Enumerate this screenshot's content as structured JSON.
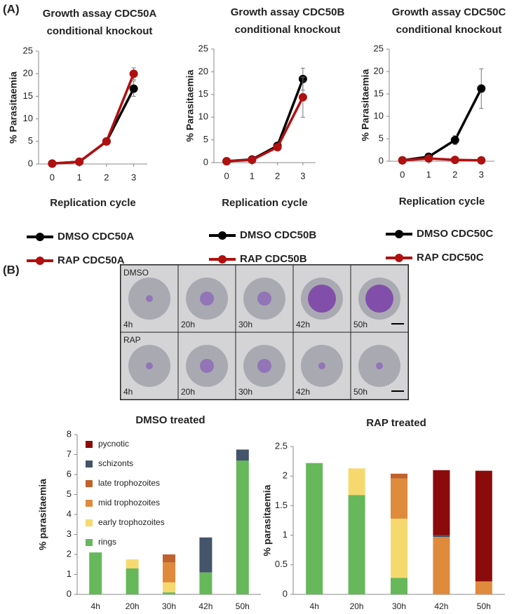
{
  "panels": [
    "(A)",
    "(B)"
  ],
  "micrograph": {
    "rows": [
      "DMSO",
      "RAP"
    ],
    "times": [
      "4h",
      "20h",
      "30h",
      "42h",
      "50h"
    ]
  },
  "chart_data": [
    {
      "type": "line",
      "title": [
        "Growth assay CDC50A",
        "conditional knockout"
      ],
      "x_label": "Replication cycle",
      "y_label": "% Parasitaemia",
      "x": [
        0,
        1,
        2,
        3
      ],
      "xlim": [
        -0.5,
        3.5
      ],
      "xticks": [
        0,
        1,
        2,
        3
      ],
      "ylim": [
        0,
        25
      ],
      "yticks": [
        0,
        5,
        10,
        15,
        20,
        25
      ],
      "series": [
        {
          "name": "DMSO CDC50A",
          "color": "#000000",
          "values": [
            0.1,
            0.5,
            5,
            16.7
          ],
          "errors": [
            0.05,
            0.1,
            0.3,
            1.7
          ]
        },
        {
          "name": "RAP CDC50A",
          "color": "#b01010",
          "values": [
            0.1,
            0.5,
            5,
            20
          ],
          "errors": [
            0.05,
            0.1,
            0.3,
            1.3
          ]
        }
      ]
    },
    {
      "type": "line",
      "title": [
        "Growth assay CDC50B",
        "conditional knockout"
      ],
      "x_label": "Replication cycle",
      "y_label": "% Parasitaemia",
      "x": [
        0,
        1,
        2,
        3
      ],
      "xlim": [
        -0.5,
        3.5
      ],
      "xticks": [
        0,
        1,
        2,
        3
      ],
      "ylim": [
        0,
        25
      ],
      "yticks": [
        0,
        5,
        10,
        15,
        20,
        25
      ],
      "series": [
        {
          "name": "DMSO CDC50B",
          "color": "#000000",
          "values": [
            0.3,
            0.7,
            3.7,
            18.4
          ],
          "errors": [
            0.05,
            0.1,
            0.3,
            2.4
          ]
        },
        {
          "name": "RAP CDC50B",
          "color": "#b01010",
          "values": [
            0.3,
            0.6,
            3.4,
            14.4
          ],
          "errors": [
            0.05,
            0.1,
            0.3,
            4.4
          ]
        }
      ]
    },
    {
      "type": "line",
      "title": [
        "Growth assay CDC50C",
        "conditional knockout"
      ],
      "x_label": "Replication cycle",
      "y_label": "% Parasitaemia",
      "x": [
        0,
        1,
        2,
        3
      ],
      "xlim": [
        -0.5,
        3.5
      ],
      "xticks": [
        0,
        1,
        2,
        3
      ],
      "ylim": [
        0,
        25
      ],
      "yticks": [
        0,
        5,
        10,
        15,
        20,
        25
      ],
      "series": [
        {
          "name": "DMSO CDC50C",
          "color": "#000000",
          "values": [
            0.2,
            1.0,
            4.7,
            16.2
          ],
          "errors": [
            0.05,
            0.2,
            1.0,
            4.4
          ]
        },
        {
          "name": "RAP CDC50C",
          "color": "#b01010",
          "values": [
            0.2,
            0.6,
            0.3,
            0.2
          ],
          "errors": [
            0.05,
            0.1,
            0.1,
            0.05
          ]
        }
      ]
    },
    {
      "type": "bar",
      "stacked": true,
      "legend": true,
      "title": "DMSO treated",
      "y_label": "% parasitaemia",
      "categories": [
        "4h",
        "20h",
        "30h",
        "42h",
        "50h"
      ],
      "ylim": [
        0,
        8
      ],
      "yticks": [
        0,
        1,
        2,
        3,
        4,
        5,
        6,
        7,
        8
      ],
      "series": [
        {
          "name": "rings",
          "color": "#66b85a",
          "values": [
            2.1,
            1.3,
            0.1,
            1.1,
            6.7
          ]
        },
        {
          "name": "early trophozoites",
          "color": "#f6d96e",
          "values": [
            0,
            0.45,
            0.5,
            0,
            0
          ]
        },
        {
          "name": "mid trophozoites",
          "color": "#e08a3c",
          "values": [
            0,
            0,
            1.0,
            0,
            0
          ]
        },
        {
          "name": "late trophozoites",
          "color": "#c0622b",
          "values": [
            0,
            0,
            0.4,
            0,
            0
          ]
        },
        {
          "name": "schizonts",
          "color": "#44546a",
          "values": [
            0,
            0,
            0,
            1.75,
            0.55
          ]
        },
        {
          "name": "pycnotic",
          "color": "#8b0a0a",
          "values": [
            0,
            0,
            0,
            0,
            0
          ]
        }
      ]
    },
    {
      "type": "bar",
      "stacked": true,
      "legend": false,
      "title": "RAP treated",
      "y_label": "% parasitaemia",
      "categories": [
        "4h",
        "20h",
        "30h",
        "42h",
        "50h"
      ],
      "ylim": [
        0,
        2.5
      ],
      "yticks": [
        0,
        0.5,
        1,
        1.5,
        2,
        2.5
      ],
      "series": [
        {
          "name": "rings",
          "color": "#66b85a",
          "values": [
            2.22,
            1.68,
            0.28,
            0,
            0
          ]
        },
        {
          "name": "early trophozoites",
          "color": "#f6d96e",
          "values": [
            0,
            0.45,
            1.0,
            0,
            0
          ]
        },
        {
          "name": "mid trophozoites",
          "color": "#e08a3c",
          "values": [
            0,
            0,
            0.68,
            0.97,
            0.22
          ]
        },
        {
          "name": "late trophozoites",
          "color": "#c0622b",
          "values": [
            0,
            0,
            0.08,
            0,
            0
          ]
        },
        {
          "name": "schizonts",
          "color": "#44546a",
          "values": [
            0,
            0,
            0,
            0.03,
            0
          ]
        },
        {
          "name": "pycnotic",
          "color": "#8b0a0a",
          "values": [
            0,
            0,
            0,
            1.1,
            1.87
          ]
        }
      ]
    }
  ]
}
